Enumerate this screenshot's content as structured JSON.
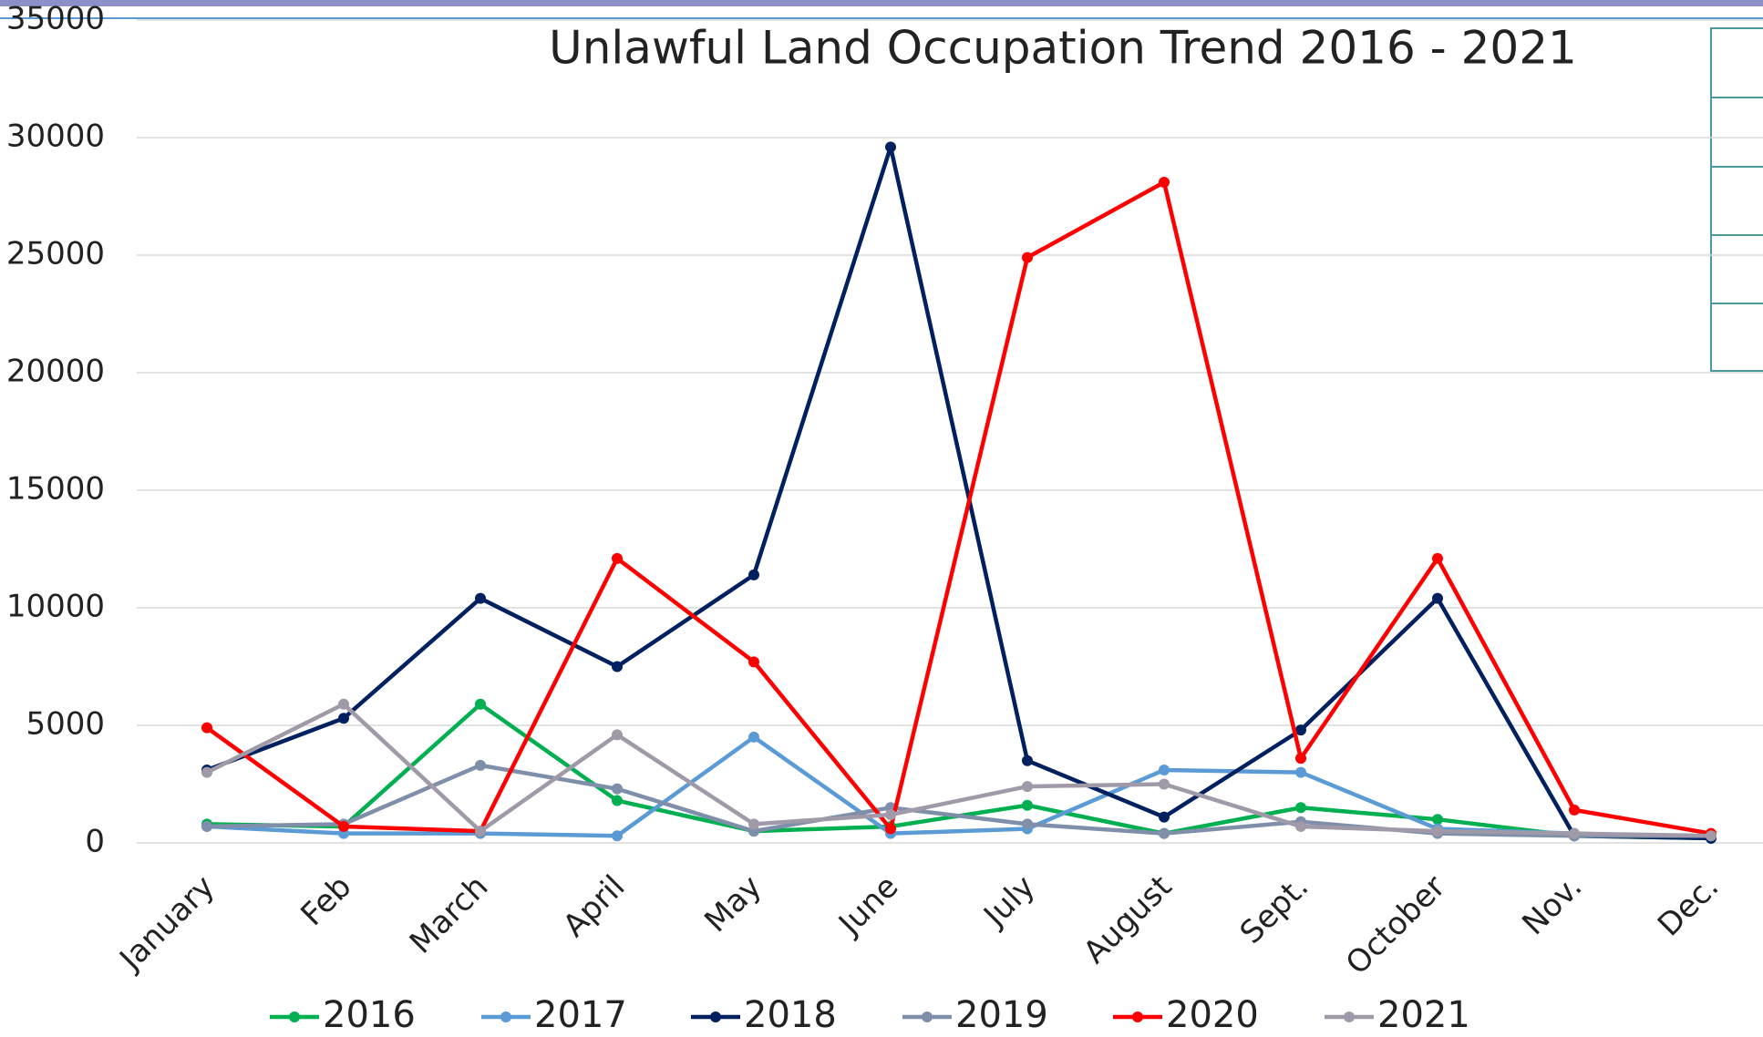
{
  "chart_data": {
    "type": "line",
    "title": "Unlawful Land Occupation Trend 2016 - 2021",
    "categories": [
      "January",
      "Feb",
      "March",
      "April",
      "May",
      "June",
      "July",
      "August",
      "Sept.",
      "October",
      "Nov.",
      "Dec."
    ],
    "series": [
      {
        "name": "2016",
        "color": "#00b050",
        "values": [
          800,
          700,
          5900,
          1800,
          500,
          700,
          1600,
          400,
          1500,
          1000,
          300,
          200
        ]
      },
      {
        "name": "2017",
        "color": "#5b9bd5",
        "values": [
          700,
          400,
          400,
          300,
          4500,
          400,
          600,
          3100,
          3000,
          600,
          400,
          200
        ]
      },
      {
        "name": "2018",
        "color": "#002060",
        "values": [
          3100,
          5300,
          10400,
          7500,
          11400,
          29600,
          3500,
          1100,
          4800,
          10400,
          300,
          200
        ]
      },
      {
        "name": "2019",
        "color": "#7f8fa9",
        "values": [
          700,
          800,
          3300,
          2300,
          500,
          1500,
          800,
          400,
          900,
          400,
          300,
          300
        ]
      },
      {
        "name": "2020",
        "color": "#ff0000",
        "values": [
          4900,
          700,
          500,
          12100,
          7700,
          600,
          24900,
          28100,
          3600,
          12100,
          1400,
          400
        ]
      },
      {
        "name": "2021",
        "color": "#a09aa8",
        "values": [
          3000,
          5900,
          500,
          4600,
          800,
          1200,
          2400,
          2500,
          700,
          500,
          400,
          300
        ]
      }
    ],
    "ylim": [
      0,
      35000
    ],
    "yticks": [
      0,
      5000,
      10000,
      15000,
      20000,
      25000,
      30000,
      35000
    ],
    "grid": true,
    "legend": "bottom"
  }
}
